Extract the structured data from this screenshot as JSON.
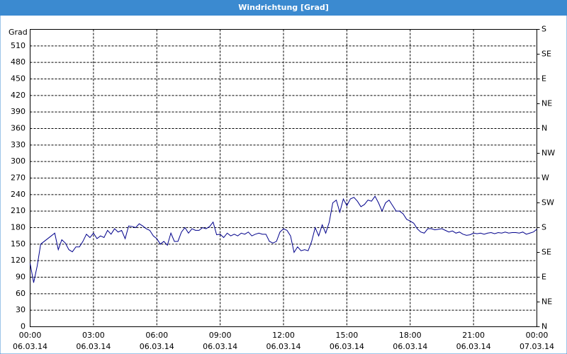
{
  "chart_data": {
    "type": "line",
    "title": "Windrichtung [Grad]",
    "y_label": "Grad",
    "x": [
      0,
      10,
      20,
      30,
      40,
      50,
      60,
      70,
      80,
      90,
      100,
      110,
      120,
      130,
      140,
      150,
      160,
      170,
      180,
      190,
      200,
      210,
      220,
      230,
      240,
      250,
      260,
      270,
      280,
      290,
      300,
      310,
      320,
      330,
      340,
      350,
      360,
      370,
      380,
      390,
      400,
      410,
      420,
      430,
      440,
      450,
      460,
      470,
      480,
      490,
      500,
      510,
      520,
      530,
      540,
      550,
      560,
      570,
      580,
      590,
      600,
      610,
      620,
      630,
      640,
      650,
      660,
      670,
      680,
      690,
      700,
      710,
      720,
      730,
      740,
      750,
      760,
      770,
      780,
      790,
      800,
      810,
      820,
      830,
      840,
      850,
      860,
      870,
      880,
      890,
      900,
      910,
      920,
      930,
      940,
      950,
      960,
      970,
      980,
      990,
      1000,
      1010,
      1020,
      1030,
      1040,
      1050,
      1060,
      1070,
      1080,
      1090,
      1100,
      1110,
      1120,
      1130,
      1140,
      1150,
      1160,
      1170,
      1180,
      1190,
      1200,
      1210,
      1220,
      1230,
      1240,
      1250,
      1260,
      1270,
      1280,
      1290,
      1300,
      1310,
      1320,
      1330,
      1340,
      1350,
      1360,
      1370,
      1380,
      1390,
      1400,
      1410,
      1420,
      1430,
      1440
    ],
    "series": [
      {
        "name": "Windrichtung",
        "color": "#00008b",
        "values": [
          115,
          80,
          110,
          150,
          155,
          160,
          165,
          170,
          140,
          158,
          152,
          140,
          136,
          145,
          145,
          155,
          168,
          162,
          170,
          160,
          165,
          162,
          175,
          168,
          178,
          172,
          175,
          160,
          183,
          182,
          180,
          187,
          183,
          178,
          175,
          165,
          160,
          150,
          155,
          148,
          170,
          155,
          155,
          172,
          180,
          170,
          178,
          175,
          175,
          180,
          178,
          182,
          190,
          167,
          168,
          162,
          170,
          165,
          168,
          165,
          170,
          168,
          172,
          165,
          168,
          170,
          168,
          168,
          155,
          152,
          155,
          172,
          178,
          175,
          165,
          135,
          145,
          138,
          140,
          138,
          155,
          180,
          165,
          185,
          170,
          190,
          225,
          230,
          208,
          232,
          220,
          232,
          235,
          228,
          218,
          222,
          230,
          228,
          237,
          225,
          210,
          225,
          230,
          220,
          210,
          210,
          205,
          195,
          192,
          188,
          178,
          172,
          170,
          178,
          178,
          176,
          177,
          178,
          175,
          172,
          174,
          170,
          172,
          168,
          166,
          167,
          170,
          169,
          170,
          168,
          170,
          171,
          169,
          171,
          170,
          172,
          170,
          171,
          171,
          170,
          172,
          168,
          170,
          172,
          177
        ]
      }
    ],
    "xlim": [
      0,
      1440
    ],
    "xticks": [
      {
        "value": 0,
        "label": [
          "00:00",
          "06.03.14"
        ]
      },
      {
        "value": 180,
        "label": [
          "03:00",
          "06.03.14"
        ]
      },
      {
        "value": 360,
        "label": [
          "06:00",
          "06.03.14"
        ]
      },
      {
        "value": 540,
        "label": [
          "09:00",
          "06.03.14"
        ]
      },
      {
        "value": 720,
        "label": [
          "12:00",
          "06.03.14"
        ]
      },
      {
        "value": 900,
        "label": [
          "15:00",
          "06.03.14"
        ]
      },
      {
        "value": 1080,
        "label": [
          "18:00",
          "06.03.14"
        ]
      },
      {
        "value": 1260,
        "label": [
          "21:00",
          "06.03.14"
        ]
      },
      {
        "value": 1440,
        "label": [
          "00:00",
          "07.03.14"
        ]
      }
    ],
    "ylim": [
      0,
      540
    ],
    "yticks": [
      0,
      30,
      60,
      90,
      120,
      150,
      180,
      210,
      240,
      270,
      300,
      330,
      360,
      390,
      420,
      450,
      480,
      510
    ],
    "y2lim": [
      0,
      540
    ],
    "y2ticks": [
      {
        "value": 0,
        "label": "N"
      },
      {
        "value": 45,
        "label": "NE"
      },
      {
        "value": 90,
        "label": "E"
      },
      {
        "value": 135,
        "label": "SE"
      },
      {
        "value": 180,
        "label": "S"
      },
      {
        "value": 225,
        "label": "SW"
      },
      {
        "value": 270,
        "label": "W"
      },
      {
        "value": 315,
        "label": "NW"
      },
      {
        "value": 360,
        "label": "N"
      },
      {
        "value": 405,
        "label": "NE"
      },
      {
        "value": 450,
        "label": "E"
      },
      {
        "value": 495,
        "label": "SE"
      },
      {
        "value": 540,
        "label": "S"
      }
    ],
    "grid": true
  }
}
